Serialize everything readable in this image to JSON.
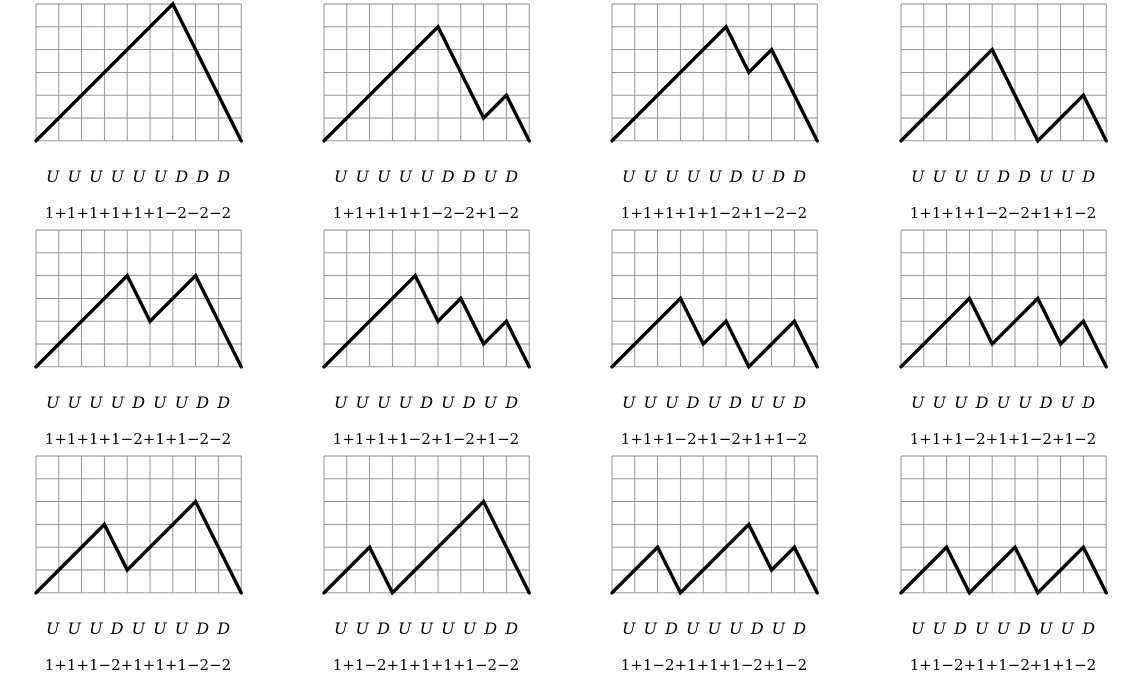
{
  "panels": [
    {
      "steps": "U U U U U U D D D",
      "sum": "1+1+1+1+1+1−2−2−2",
      "path": "UUUUUUDDD"
    },
    {
      "steps": "U U U U U D D U D",
      "sum": "1+1+1+1+1−2−2+1−2",
      "path": "UUUUUDDUD"
    },
    {
      "steps": "U U U U U D U D D",
      "sum": "1+1+1+1+1−2+1−2−2",
      "path": "UUUUUDUDD"
    },
    {
      "steps": "U U U U D D U U D",
      "sum": "1+1+1+1−2−2+1+1−2",
      "path": "UUUUDDUUD"
    },
    {
      "steps": "U U U U D U U D D",
      "sum": "1+1+1+1−2+1+1−2−2",
      "path": "UUUUDUUDD"
    },
    {
      "steps": "U U U U D U D U D",
      "sum": "1+1+1+1−2+1−2+1−2",
      "path": "UUUUDUDUD"
    },
    {
      "steps": "U U U D U D U U D",
      "sum": "1+1+1−2+1−2+1+1−2",
      "path": "UUUDUDUUD"
    },
    {
      "steps": "U U U D U U D U D",
      "sum": "1+1+1−2+1+1−2+1−2",
      "path": "UUUDUUDUD"
    },
    {
      "steps": "U U U D U U U D D",
      "sum": "1+1+1−2+1+1+1−2−2",
      "path": "UUUDUUUDD"
    },
    {
      "steps": "U U D U U U U D D",
      "sum": "1+1−2+1+1+1+1−2−2",
      "path": "UUDUUUUDD"
    },
    {
      "steps": "U U D U U U D U D",
      "sum": "1+1−2+1+1+1−2+1−2",
      "path": "UUDUUUDUD"
    },
    {
      "steps": "U U D U U D U U D",
      "sum": "1+1−2+1+1−2+1+1−2",
      "path": "UUDUUDUUD"
    }
  ],
  "colors": {
    "grid": "#8a8a8a",
    "path": "#000000"
  }
}
